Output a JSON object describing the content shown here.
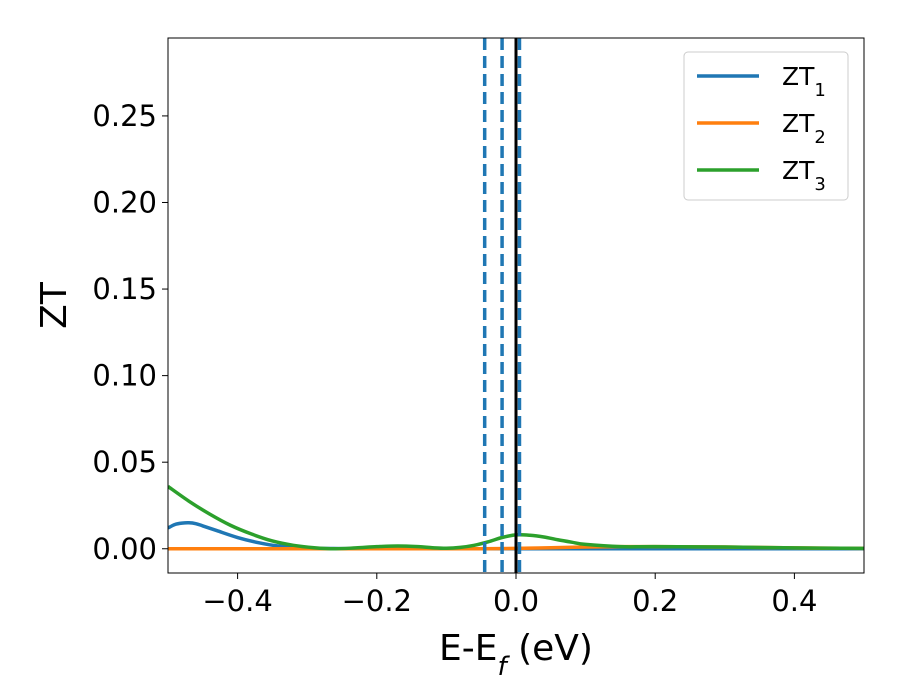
{
  "chart_data": {
    "type": "line",
    "xlabel": "E-E_f (eV)",
    "ylabel": "ZT",
    "xlim": [
      -0.5,
      0.5
    ],
    "ylim": [
      -0.014,
      0.295
    ],
    "xticks": [
      -0.4,
      -0.2,
      0.0,
      0.2,
      0.4
    ],
    "xtick_labels": [
      "−0.4",
      "−0.2",
      "0.0",
      "0.2",
      "0.4"
    ],
    "yticks": [
      0.0,
      0.05,
      0.1,
      0.15,
      0.2,
      0.25
    ],
    "ytick_labels": [
      "0.00",
      "0.05",
      "0.10",
      "0.15",
      "0.20",
      "0.25"
    ],
    "grid": false,
    "legend_position": "top-right",
    "series": [
      {
        "name": "ZT1",
        "color": "#1f77b4",
        "x": [
          -0.5,
          -0.49,
          -0.48,
          -0.47,
          -0.46,
          -0.45,
          -0.43,
          -0.4,
          -0.37,
          -0.34,
          -0.3,
          -0.25,
          -0.2,
          -0.15,
          -0.1,
          -0.05,
          0.0,
          0.05,
          0.1,
          0.2,
          0.3,
          0.4,
          0.5
        ],
        "y": [
          0.012,
          0.014,
          0.0148,
          0.015,
          0.0145,
          0.0132,
          0.0105,
          0.0065,
          0.0035,
          0.0015,
          0.0004,
          0.0001,
          0.0,
          0.0,
          0.0,
          0.0,
          0.0,
          0.0,
          0.0,
          0.0,
          0.0,
          0.0,
          0.0
        ]
      },
      {
        "name": "ZT2",
        "color": "#ff7f0e",
        "x": [
          -0.5,
          -0.3,
          -0.1,
          -0.05,
          0.0,
          0.05,
          0.1,
          0.15,
          0.2,
          0.3,
          0.4,
          0.5
        ],
        "y": [
          0.0,
          0.0,
          0.0,
          0.0,
          0.0002,
          0.0006,
          0.001,
          0.0012,
          0.0012,
          0.001,
          0.0005,
          0.0002
        ]
      },
      {
        "name": "ZT3",
        "color": "#2ca02c",
        "x": [
          -0.5,
          -0.47,
          -0.44,
          -0.41,
          -0.38,
          -0.35,
          -0.32,
          -0.29,
          -0.26,
          -0.23,
          -0.2,
          -0.17,
          -0.14,
          -0.12,
          -0.1,
          -0.08,
          -0.06,
          -0.04,
          -0.02,
          0.0,
          0.02,
          0.04,
          0.06,
          0.08,
          0.1,
          0.15,
          0.2,
          0.3,
          0.4,
          0.5
        ],
        "y": [
          0.036,
          0.0275,
          0.02,
          0.0135,
          0.0085,
          0.0045,
          0.002,
          0.0006,
          0.0,
          0.0005,
          0.0012,
          0.0016,
          0.0012,
          0.0006,
          0.0003,
          0.0008,
          0.002,
          0.004,
          0.0065,
          0.008,
          0.0078,
          0.0068,
          0.0052,
          0.0038,
          0.0025,
          0.0012,
          0.0012,
          0.001,
          0.0005,
          0.0002
        ]
      }
    ],
    "vertical_lines": [
      {
        "x": -0.045,
        "style": "dashed",
        "color": "#1f77b4"
      },
      {
        "x": -0.02,
        "style": "dashed",
        "color": "#1f77b4"
      },
      {
        "x": 0.005,
        "style": "dashed",
        "color": "#1f77b4"
      },
      {
        "x": 0.0,
        "style": "solid",
        "color": "#000000"
      }
    ],
    "legend": [
      {
        "base": "ZT",
        "sub": "1"
      },
      {
        "base": "ZT",
        "sub": "2"
      },
      {
        "base": "ZT",
        "sub": "3"
      }
    ]
  }
}
